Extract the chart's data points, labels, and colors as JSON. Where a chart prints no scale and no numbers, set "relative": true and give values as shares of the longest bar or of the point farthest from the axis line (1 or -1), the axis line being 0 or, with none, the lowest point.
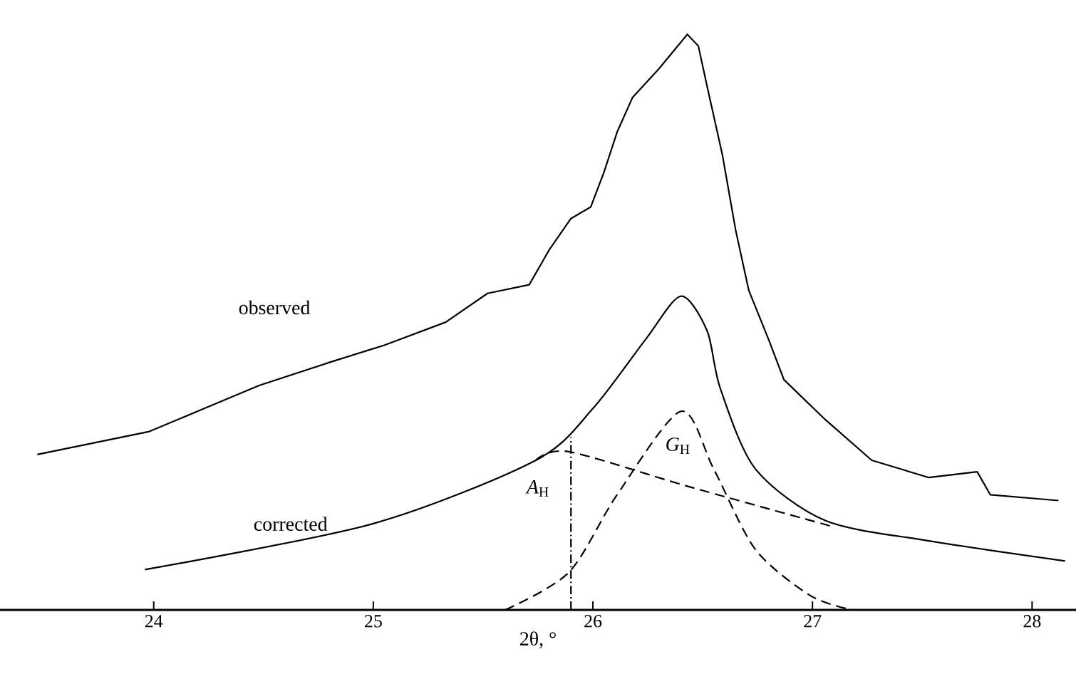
{
  "chart_data": {
    "type": "line",
    "relative": true,
    "xlabel": "2θ, °",
    "xlim": [
      23.3,
      28.2
    ],
    "xticks": [
      24,
      25,
      26,
      27,
      28
    ],
    "series": [
      {
        "name": "observed",
        "color": "#000000",
        "line_style": "solid",
        "x": [
          23.47,
          23.98,
          24.23,
          24.48,
          24.8,
          25.05,
          25.33,
          25.52,
          25.71,
          25.8,
          25.9,
          25.99,
          26.05,
          26.11,
          26.18,
          26.3,
          26.43,
          26.48,
          26.52,
          26.59,
          26.65,
          26.71,
          26.8,
          26.87,
          27.06,
          27.27,
          27.53,
          27.75,
          27.81,
          28.12
        ],
        "values": [
          0.27,
          0.31,
          0.35,
          0.39,
          0.43,
          0.46,
          0.5,
          0.55,
          0.565,
          0.625,
          0.68,
          0.7,
          0.76,
          0.83,
          0.89,
          0.94,
          1,
          0.98,
          0.91,
          0.79,
          0.66,
          0.555,
          0.47,
          0.4,
          0.33,
          0.26,
          0.23,
          0.24,
          0.2,
          0.19
        ]
      },
      {
        "name": "corrected",
        "color": "#000000",
        "line_style": "solid",
        "x": [
          23.96,
          25.0,
          25.74,
          26.0,
          26.24,
          26.4,
          26.52,
          26.58,
          26.74,
          27.06,
          27.53,
          28.15
        ],
        "values": [
          0.07,
          0.15,
          0.26,
          0.35,
          0.47,
          0.545,
          0.485,
          0.385,
          0.245,
          0.155,
          0.12,
          0.085
        ]
      },
      {
        "name": "*A*$_{H}$",
        "color": "#000000",
        "line_style": "dashed",
        "x": [
          25.74,
          25.89,
          26.43,
          27.09
        ],
        "values": [
          0.26,
          0.275,
          0.215,
          0.145
        ]
      },
      {
        "name": "*G*$_{H}$",
        "color": "#000000",
        "line_style": "dashed",
        "x": [
          25.6,
          25.89,
          26.11,
          26.4,
          26.55,
          26.74,
          26.99,
          27.18
        ],
        "values": [
          0,
          0.065,
          0.2,
          0.345,
          0.245,
          0.105,
          0.025,
          0
        ]
      },
      {
        "color": "#000000",
        "line_style": "dashdot",
        "x": [
          25.9,
          25.9
        ],
        "values": [
          0,
          0.3
        ]
      }
    ]
  }
}
